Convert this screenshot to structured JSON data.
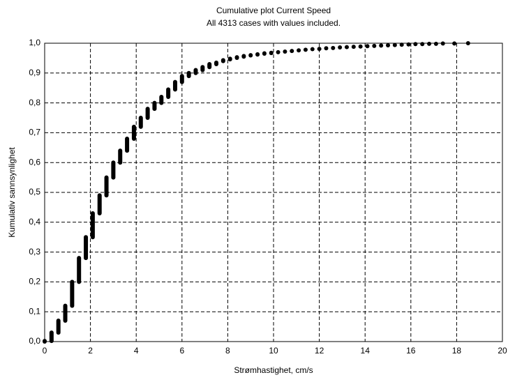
{
  "chart_data": {
    "type": "range",
    "title": "Cumulative plot Current Speed",
    "subtitle": "All 4313 cases with values included.",
    "x_label": "Strømhastighet, cm/s",
    "y_label": "Kumulativ sannsynlighet",
    "color": "#000000",
    "grid": true,
    "x": [
      0,
      0.3,
      0.6,
      0.9,
      1.2,
      1.5,
      1.8,
      2.1,
      2.4,
      2.7,
      3.0,
      3.3,
      3.6,
      3.9,
      4.2,
      4.5,
      4.8,
      5.1,
      5.4,
      5.7,
      6.0,
      6.3,
      6.6,
      6.9,
      7.2,
      7.5,
      7.8,
      8.1,
      8.4,
      8.7,
      9.0,
      9.3,
      9.6,
      9.9,
      10.2,
      10.5,
      10.8,
      11.1,
      11.4,
      11.7,
      12.0,
      12.3,
      12.6,
      12.9,
      13.2,
      13.5,
      13.8,
      14.1,
      14.4,
      14.7,
      15.0,
      15.3,
      15.6,
      15.9,
      16.2,
      16.5,
      16.8,
      17.1,
      17.4,
      17.9,
      18.5
    ],
    "low": [
      0,
      0.002,
      0.03,
      0.07,
      0.12,
      0.2,
      0.28,
      0.35,
      0.43,
      0.49,
      0.55,
      0.6,
      0.64,
      0.68,
      0.72,
      0.75,
      0.78,
      0.8,
      0.82,
      0.845,
      0.87,
      0.89,
      0.9,
      0.91,
      0.92,
      0.93,
      0.94,
      0.946,
      0.951,
      0.955,
      0.959,
      0.962,
      0.965,
      0.967,
      0.97,
      0.972,
      0.974,
      0.976,
      0.978,
      0.98,
      0.981,
      0.983,
      0.984,
      0.986,
      0.987,
      0.988,
      0.989,
      0.99,
      0.991,
      0.992,
      0.993,
      0.994,
      0.995,
      0.996,
      0.997,
      0.997,
      0.998,
      0.998,
      0.999,
      0.999,
      1.0
    ],
    "high": [
      0.002,
      0.03,
      0.07,
      0.12,
      0.2,
      0.28,
      0.35,
      0.43,
      0.49,
      0.55,
      0.6,
      0.64,
      0.68,
      0.72,
      0.75,
      0.78,
      0.8,
      0.82,
      0.845,
      0.87,
      0.89,
      0.9,
      0.91,
      0.92,
      0.93,
      0.935,
      0.943,
      0.948,
      0.953,
      0.957,
      0.96,
      0.963,
      0.966,
      0.968,
      0.97,
      0.972,
      0.974,
      0.976,
      0.978,
      0.98,
      0.981,
      0.983,
      0.984,
      0.986,
      0.987,
      0.988,
      0.989,
      0.99,
      0.991,
      0.992,
      0.993,
      0.994,
      0.995,
      0.996,
      0.997,
      0.997,
      0.998,
      0.998,
      0.999,
      0.999,
      1.0
    ],
    "xlim": [
      0,
      20
    ],
    "xticks": [
      0,
      2,
      4,
      6,
      8,
      10,
      12,
      14,
      16,
      18,
      20
    ],
    "ylim": [
      0,
      1
    ],
    "yticks": [
      {
        "value": 0,
        "label": "0,0"
      },
      {
        "value": 0.1,
        "label": "0,1"
      },
      {
        "value": 0.2,
        "label": "0,2"
      },
      {
        "value": 0.3,
        "label": "0,3"
      },
      {
        "value": 0.4,
        "label": "0,4"
      },
      {
        "value": 0.5,
        "label": "0,5"
      },
      {
        "value": 0.6,
        "label": "0,6"
      },
      {
        "value": 0.7,
        "label": "0,7"
      },
      {
        "value": 0.8,
        "label": "0,8"
      },
      {
        "value": 0.9,
        "label": "0,9"
      },
      {
        "value": 1,
        "label": "1,0"
      }
    ]
  }
}
